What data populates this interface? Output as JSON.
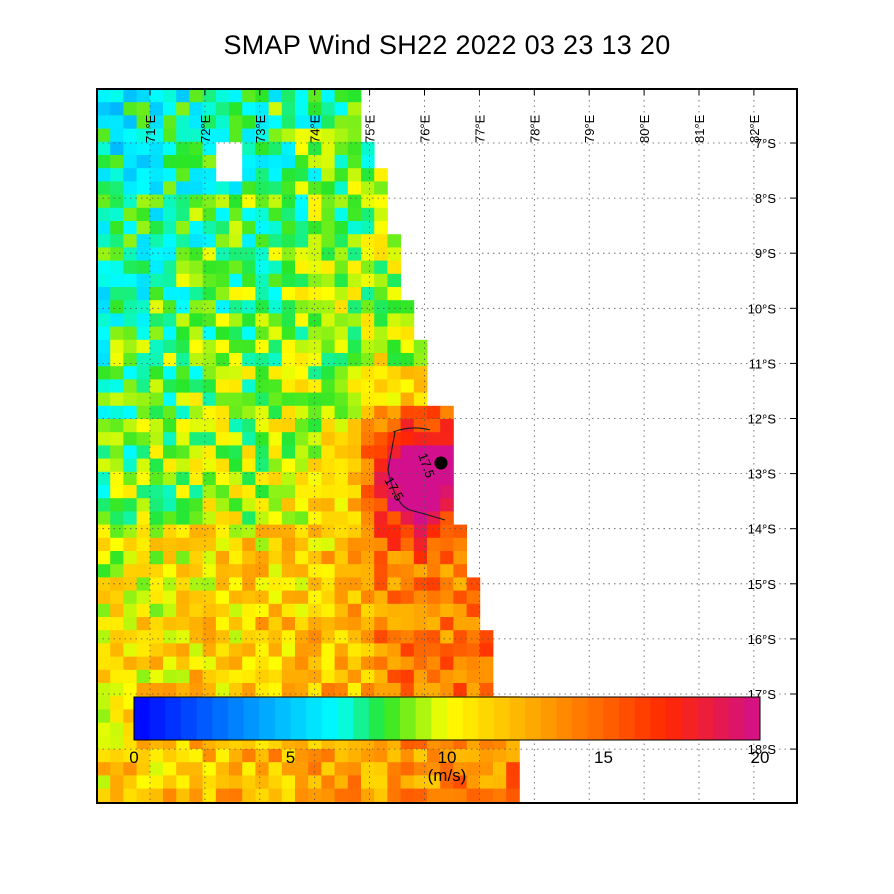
{
  "title": "SMAP Wind  SH22  2022 03 23 13 20",
  "map": {
    "lon_labels": [
      "71°E",
      "72°E",
      "73°E",
      "74°E",
      "75°E",
      "76°E",
      "77°E",
      "78°E",
      "79°E",
      "80°E",
      "81°E",
      "82°E"
    ],
    "lat_labels": [
      "7°S",
      "8°S",
      "9°S",
      "10°S",
      "11°S",
      "12°S",
      "13°S",
      "14°S",
      "15°S",
      "16°S",
      "17°S",
      "18°S"
    ],
    "storm_center": {
      "lon": 76.45,
      "lat": -12.9
    },
    "contour_labels": [
      "17.5",
      "17.5"
    ],
    "colors": {
      "max": "#d40f8a",
      "high": "#ff3000",
      "orange": "#ff9a00",
      "yellow": "#ffee00",
      "green": "#22e620",
      "cyan": "#00ffff"
    }
  },
  "colorbar": {
    "ticks": [
      "0",
      "5",
      "10",
      "15",
      "20"
    ],
    "unit": "(m/s)",
    "range": [
      0,
      20
    ]
  }
}
